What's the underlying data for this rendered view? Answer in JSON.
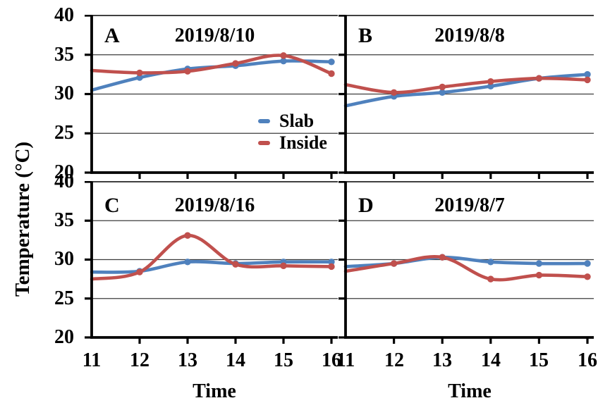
{
  "figure": {
    "y_axis_label": "Temperature (°C)",
    "x_axis_label": "Time",
    "legend": [
      {
        "name": "Slab",
        "color": "#4F81BD"
      },
      {
        "name": "Inside",
        "color": "#C0504D"
      }
    ],
    "grid_color": "#3d3d3d",
    "axis_color": "#000000"
  },
  "axes": {
    "y_ticks": [
      "40",
      "35",
      "30",
      "25",
      "20"
    ],
    "x_ticks": [
      "11",
      "12",
      "13",
      "14",
      "15",
      "16"
    ],
    "ylim": [
      20,
      40
    ],
    "xlim": [
      11,
      16
    ]
  },
  "chart_data": [
    {
      "type": "line",
      "panel": "A",
      "title": "2019/8/10",
      "x": [
        11,
        12,
        13,
        14,
        15,
        16
      ],
      "xlabel": "Time",
      "ylabel": "Temperature (°C)",
      "ylim": [
        20,
        40
      ],
      "grid": "horizontal",
      "legend_position": "inside-lower-right",
      "series": [
        {
          "name": "Slab",
          "color": "#4F81BD",
          "values": [
            30.5,
            32.1,
            33.2,
            33.6,
            34.2,
            34.1
          ]
        },
        {
          "name": "Inside",
          "color": "#C0504D",
          "values": [
            33.0,
            32.7,
            32.9,
            33.9,
            34.9,
            32.6
          ]
        }
      ]
    },
    {
      "type": "line",
      "panel": "B",
      "title": "2019/8/8",
      "x": [
        11,
        12,
        13,
        14,
        15,
        16
      ],
      "xlabel": "Time",
      "ylabel": "Temperature (°C)",
      "ylim": [
        20,
        40
      ],
      "grid": "horizontal",
      "series": [
        {
          "name": "Slab",
          "color": "#4F81BD",
          "values": [
            28.5,
            29.7,
            30.2,
            31.0,
            32.0,
            32.5
          ]
        },
        {
          "name": "Inside",
          "color": "#C0504D",
          "values": [
            31.2,
            30.2,
            30.9,
            31.6,
            32.0,
            31.8
          ]
        }
      ]
    },
    {
      "type": "line",
      "panel": "C",
      "title": "2019/8/16",
      "x": [
        11,
        12,
        13,
        14,
        15,
        16
      ],
      "xlabel": "Time",
      "ylabel": "Temperature (°C)",
      "ylim": [
        20,
        40
      ],
      "grid": "horizontal",
      "series": [
        {
          "name": "Slab",
          "color": "#4F81BD",
          "values": [
            28.4,
            28.5,
            29.7,
            29.5,
            29.7,
            29.7
          ]
        },
        {
          "name": "Inside",
          "color": "#C0504D",
          "values": [
            27.5,
            28.4,
            33.1,
            29.4,
            29.2,
            29.1
          ]
        }
      ]
    },
    {
      "type": "line",
      "panel": "D",
      "title": "2019/8/7",
      "x": [
        11,
        12,
        13,
        14,
        15,
        16
      ],
      "xlabel": "Time",
      "ylabel": "Temperature (°C)",
      "ylim": [
        20,
        40
      ],
      "grid": "horizontal",
      "series": [
        {
          "name": "Slab",
          "color": "#4F81BD",
          "values": [
            29.1,
            29.5,
            30.3,
            29.7,
            29.5,
            29.5
          ]
        },
        {
          "name": "Inside",
          "color": "#C0504D",
          "values": [
            28.5,
            29.5,
            30.3,
            27.5,
            28.0,
            27.8
          ]
        }
      ]
    }
  ]
}
